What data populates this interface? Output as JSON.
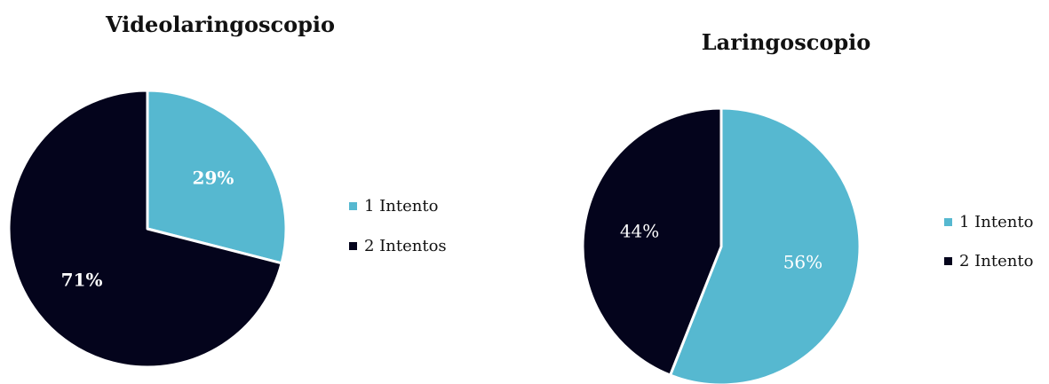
{
  "colors": {
    "series_1": "#56b8d0",
    "series_2": "#04041c",
    "slice_border": "#ffffff",
    "label_light": "#ffffff"
  },
  "chart_data": [
    {
      "type": "pie",
      "title": "Videolaringoscopio",
      "categories": [
        "1 Intento",
        "2 Intentos"
      ],
      "values": [
        29,
        71
      ],
      "labels": [
        "29%",
        "71%"
      ],
      "label_bold": true,
      "legend": [
        "1 Intento",
        "2 Intentos"
      ],
      "legend_position": "right"
    },
    {
      "type": "pie",
      "title": "Laringoscopio",
      "categories": [
        "1 Intento",
        "2 Intento"
      ],
      "values": [
        56,
        44
      ],
      "labels": [
        "56%",
        "44%"
      ],
      "label_bold": false,
      "legend": [
        "1 Intento",
        "2 Intento"
      ],
      "legend_position": "right"
    }
  ]
}
